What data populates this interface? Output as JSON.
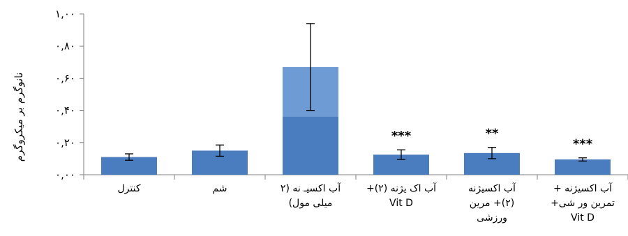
{
  "chart_data": {
    "type": "bar",
    "title": "",
    "xlabel": "",
    "ylabel": "نانوگرم بر میکروگرم",
    "ylim": [
      0,
      1.0
    ],
    "yticks": [
      "۰,۰۰",
      "۰,۲۰",
      "۰,۴۰",
      "۰,۶۰",
      "۰,۸۰",
      "۱,۰۰"
    ],
    "categories": [
      "کنترل",
      "شم",
      "آب اکسیـ نه (۲\nمیلی مول)",
      "آب اک یژنه (۲)+\nVit D",
      "آب اکسیژنه\n(۲)+ مرین\nورزشی",
      "آب اکسیژنه +\nتمرین ور شی+\nVit D"
    ],
    "values": [
      0.11,
      0.15,
      0.67,
      0.125,
      0.135,
      0.095
    ],
    "errors": [
      0.02,
      0.035,
      0.27,
      0.03,
      0.035,
      0.01
    ],
    "significance": [
      "",
      "",
      "",
      "***",
      "**",
      "***"
    ],
    "grid": false,
    "bar_color": "#4a7dbf",
    "highlight_color": "#6f9bd4"
  }
}
